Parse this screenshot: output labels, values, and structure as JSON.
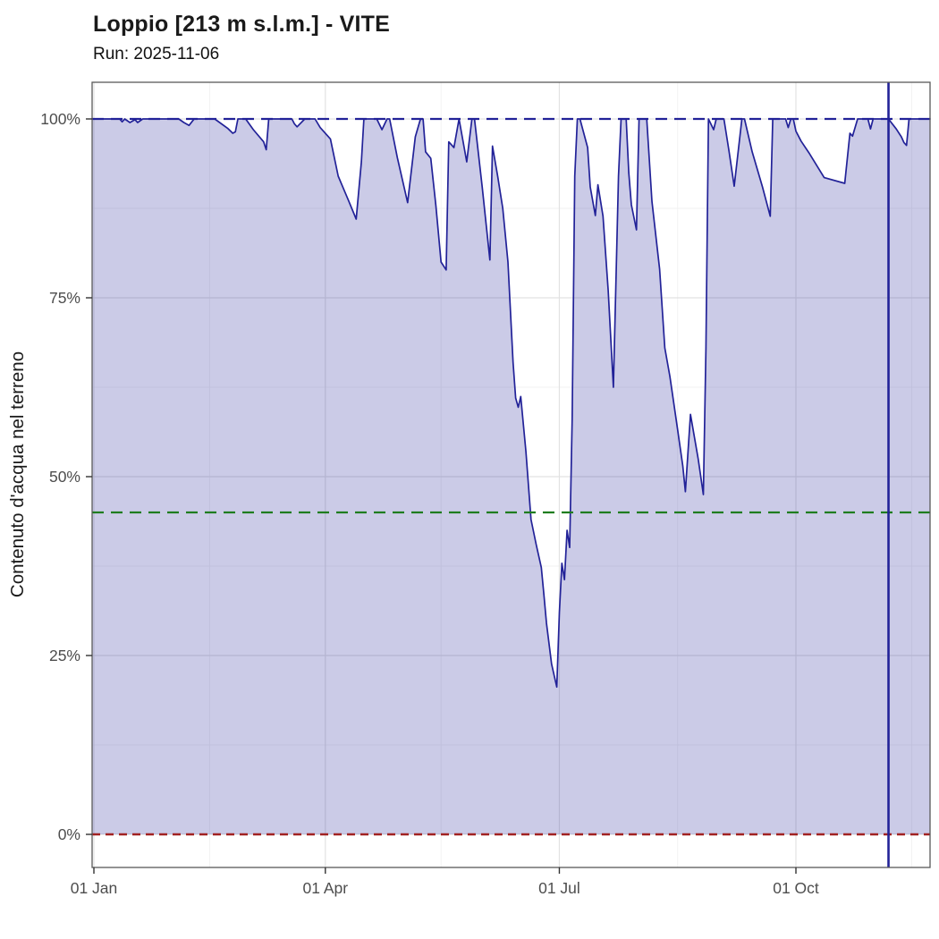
{
  "header": {
    "title": "Loppio [213 m s.l.m.] - VITE",
    "subtitle": "Run: 2025-11-06"
  },
  "chart_data": {
    "type": "area",
    "title": "Loppio [213 m s.l.m.] - VITE",
    "subtitle": "Run: 2025-11-06",
    "xlabel": "",
    "ylabel": "Contenuto d'acqua nel terreno",
    "ylim": [
      0,
      100
    ],
    "grid": true,
    "legend": "none",
    "y_ticks": [
      {
        "value": 0,
        "label": "0%"
      },
      {
        "value": 25,
        "label": "25%"
      },
      {
        "value": 50,
        "label": "50%"
      },
      {
        "value": 75,
        "label": "75%"
      },
      {
        "value": 100,
        "label": "100%"
      }
    ],
    "y_minor": [
      12.5,
      37.5,
      62.5,
      87.5
    ],
    "x_ticks": [
      {
        "date": "2025-01-01",
        "label": "01 Jan"
      },
      {
        "date": "2025-04-01",
        "label": "01 Apr"
      },
      {
        "date": "2025-07-01",
        "label": "01 Jul"
      },
      {
        "date": "2025-10-01",
        "label": "01 Oct"
      }
    ],
    "x_minor": [
      "2025-02-15",
      "2025-05-16",
      "2025-08-16",
      "2025-11-15"
    ],
    "x_domain": [
      "2024-12-31",
      "2025-11-21"
    ],
    "thresholds": [
      {
        "name": "upper",
        "value": 100,
        "color": "#222298",
        "dash": "13 8",
        "width": 2.3
      },
      {
        "name": "middle",
        "value": 45,
        "color": "#1f7d1f",
        "dash": "13 8",
        "width": 2.3
      },
      {
        "name": "lower",
        "value": 0,
        "color": "#a12222",
        "dash": "9 6",
        "width": 2.5
      }
    ],
    "run_line": {
      "date": "2025-11-06",
      "color": "#222298",
      "width": 2.6
    },
    "colors": {
      "line": "#222298",
      "fill": "rgba(34,34,152,0.235)",
      "grid_major": "#e2e2e2",
      "grid_minor": "#f1f1f1",
      "border": "#595959",
      "tick_mark": "#333333",
      "tick_label": "#4d4d4d",
      "axis_title": "#1a1a1a"
    },
    "series": [
      {
        "name": "Contenuto d'acqua nel terreno",
        "points": [
          [
            "2025-01-01",
            100
          ],
          [
            "2025-01-11",
            100
          ],
          [
            "2025-01-12",
            99.6
          ],
          [
            "2025-01-13",
            100
          ],
          [
            "2025-01-15",
            99.5
          ],
          [
            "2025-01-17",
            99.9
          ],
          [
            "2025-01-18",
            99.5
          ],
          [
            "2025-01-20",
            100
          ],
          [
            "2025-02-03",
            100
          ],
          [
            "2025-02-05",
            99.5
          ],
          [
            "2025-02-07",
            99.1
          ],
          [
            "2025-02-09",
            100
          ],
          [
            "2025-02-17",
            100
          ],
          [
            "2025-02-22",
            98.7
          ],
          [
            "2025-02-24",
            98
          ],
          [
            "2025-02-25",
            98.2
          ],
          [
            "2025-02-26",
            100
          ],
          [
            "2025-03-01",
            100
          ],
          [
            "2025-03-04",
            98.5
          ],
          [
            "2025-03-08",
            96.8
          ],
          [
            "2025-03-09",
            95.7
          ],
          [
            "2025-03-10",
            100
          ],
          [
            "2025-03-19",
            100
          ],
          [
            "2025-03-20",
            99.3
          ],
          [
            "2025-03-21",
            98.9
          ],
          [
            "2025-03-24",
            100
          ],
          [
            "2025-03-28",
            100
          ],
          [
            "2025-03-30",
            98.8
          ],
          [
            "2025-04-03",
            97.2
          ],
          [
            "2025-04-06",
            92
          ],
          [
            "2025-04-10",
            88.6
          ],
          [
            "2025-04-13",
            86
          ],
          [
            "2025-04-15",
            94
          ],
          [
            "2025-04-16",
            100
          ],
          [
            "2025-04-21",
            100
          ],
          [
            "2025-04-23",
            98.5
          ],
          [
            "2025-04-25",
            100
          ],
          [
            "2025-04-26",
            100
          ],
          [
            "2025-04-29",
            94.6
          ],
          [
            "2025-05-03",
            88.3
          ],
          [
            "2025-05-06",
            97.5
          ],
          [
            "2025-05-08",
            100
          ],
          [
            "2025-05-09",
            100
          ],
          [
            "2025-05-10",
            95.4
          ],
          [
            "2025-05-12",
            94.5
          ],
          [
            "2025-05-14",
            87.9
          ],
          [
            "2025-05-16",
            80
          ],
          [
            "2025-05-18",
            78.9
          ],
          [
            "2025-05-19",
            96.8
          ],
          [
            "2025-05-21",
            96
          ],
          [
            "2025-05-23",
            100
          ],
          [
            "2025-05-26",
            94
          ],
          [
            "2025-05-28",
            100
          ],
          [
            "2025-05-29",
            100
          ],
          [
            "2025-06-01",
            90.5
          ],
          [
            "2025-06-04",
            80.3
          ],
          [
            "2025-06-05",
            96.2
          ],
          [
            "2025-06-07",
            92
          ],
          [
            "2025-06-09",
            87.5
          ],
          [
            "2025-06-11",
            80
          ],
          [
            "2025-06-13",
            66
          ],
          [
            "2025-06-14",
            61
          ],
          [
            "2025-06-15",
            59.7
          ],
          [
            "2025-06-16",
            61.2
          ],
          [
            "2025-06-18",
            53.5
          ],
          [
            "2025-06-20",
            44
          ],
          [
            "2025-06-22",
            40.5
          ],
          [
            "2025-06-24",
            37.3
          ],
          [
            "2025-06-25",
            33.5
          ],
          [
            "2025-06-26",
            29.5
          ],
          [
            "2025-06-28",
            23.8
          ],
          [
            "2025-06-30",
            20.6
          ],
          [
            "2025-07-01",
            31
          ],
          [
            "2025-07-02",
            37.9
          ],
          [
            "2025-07-03",
            35.6
          ],
          [
            "2025-07-04",
            42.5
          ],
          [
            "2025-07-05",
            40.1
          ],
          [
            "2025-07-06",
            58
          ],
          [
            "2025-07-07",
            92
          ],
          [
            "2025-07-08",
            100
          ],
          [
            "2025-07-09",
            100
          ],
          [
            "2025-07-12",
            96
          ],
          [
            "2025-07-13",
            90.5
          ],
          [
            "2025-07-15",
            86.5
          ],
          [
            "2025-07-16",
            90.8
          ],
          [
            "2025-07-18",
            86.4
          ],
          [
            "2025-07-20",
            76
          ],
          [
            "2025-07-22",
            62.5
          ],
          [
            "2025-07-24",
            92
          ],
          [
            "2025-07-25",
            100
          ],
          [
            "2025-07-27",
            100
          ],
          [
            "2025-07-28",
            92.5
          ],
          [
            "2025-07-29",
            88
          ],
          [
            "2025-07-31",
            84.5
          ],
          [
            "2025-08-01",
            100
          ],
          [
            "2025-08-04",
            100
          ],
          [
            "2025-08-06",
            88.5
          ],
          [
            "2025-08-09",
            79
          ],
          [
            "2025-08-11",
            68
          ],
          [
            "2025-08-13",
            64
          ],
          [
            "2025-08-16",
            56.6
          ],
          [
            "2025-08-18",
            51.5
          ],
          [
            "2025-08-19",
            47.9
          ],
          [
            "2025-08-21",
            58.7
          ],
          [
            "2025-08-24",
            52.5
          ],
          [
            "2025-08-26",
            47.5
          ],
          [
            "2025-08-27",
            68
          ],
          [
            "2025-08-28",
            100
          ],
          [
            "2025-08-30",
            98.5
          ],
          [
            "2025-08-31",
            100
          ],
          [
            "2025-09-03",
            100
          ],
          [
            "2025-09-05",
            95.5
          ],
          [
            "2025-09-07",
            90.6
          ],
          [
            "2025-09-10",
            100
          ],
          [
            "2025-09-11",
            100
          ],
          [
            "2025-09-14",
            95.4
          ],
          [
            "2025-09-18",
            90.5
          ],
          [
            "2025-09-21",
            86.4
          ],
          [
            "2025-09-22",
            100
          ],
          [
            "2025-09-27",
            100
          ],
          [
            "2025-09-28",
            98.8
          ],
          [
            "2025-09-29",
            100
          ],
          [
            "2025-09-30",
            100
          ],
          [
            "2025-10-01",
            98.3
          ],
          [
            "2025-10-03",
            96.9
          ],
          [
            "2025-10-06",
            95.3
          ],
          [
            "2025-10-12",
            91.8
          ],
          [
            "2025-10-20",
            91
          ],
          [
            "2025-10-22",
            98
          ],
          [
            "2025-10-23",
            97.6
          ],
          [
            "2025-10-25",
            100
          ],
          [
            "2025-10-29",
            100
          ],
          [
            "2025-10-30",
            98.6
          ],
          [
            "2025-10-31",
            100
          ],
          [
            "2025-11-06",
            100
          ],
          [
            "2025-11-09",
            98.6
          ],
          [
            "2025-11-11",
            97.5
          ],
          [
            "2025-11-12",
            96.7
          ],
          [
            "2025-11-13",
            96.3
          ],
          [
            "2025-11-14",
            100
          ],
          [
            "2025-11-21",
            100
          ]
        ]
      }
    ]
  }
}
